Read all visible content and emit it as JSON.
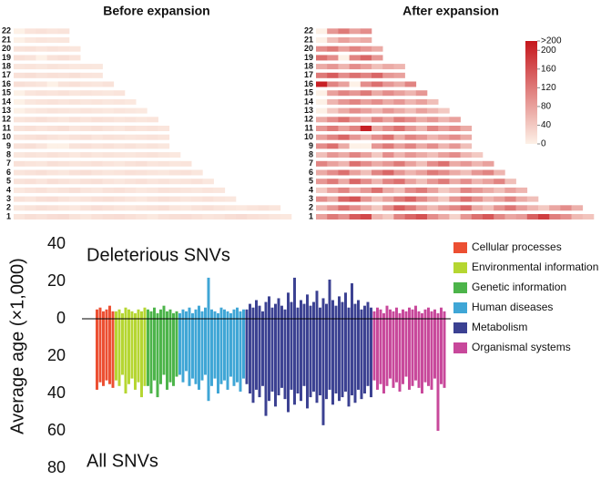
{
  "chart_data": [
    {
      "type": "heatmap",
      "title": "Before expansion",
      "rows": [
        "1",
        "2",
        "3",
        "4",
        "5",
        "6",
        "7",
        "8",
        "9",
        "10",
        "11",
        "12",
        "13",
        "14",
        "15",
        "16",
        "17",
        "18",
        "19",
        "20",
        "21",
        "22"
      ],
      "values": [
        [
          12,
          18,
          15,
          20,
          22,
          14,
          10,
          16,
          19,
          21,
          17,
          13,
          8,
          15,
          18,
          20,
          16,
          12,
          14,
          19,
          22,
          17,
          15,
          11,
          9
        ],
        [
          10,
          14,
          18,
          16,
          12,
          9,
          15,
          20,
          17,
          13,
          11,
          14,
          16,
          19,
          12,
          10,
          15,
          18,
          14,
          11,
          9,
          13,
          16,
          12
        ],
        [
          15,
          12,
          18,
          20,
          14,
          10,
          13,
          17,
          19,
          16,
          12,
          9,
          14,
          18,
          15,
          11,
          13,
          16,
          12,
          10
        ],
        [
          9,
          13,
          16,
          11,
          14,
          18,
          12,
          10,
          15,
          17,
          13,
          9,
          11,
          16,
          14,
          12,
          10,
          13,
          11
        ],
        [
          14,
          17,
          12,
          19,
          15,
          11,
          16,
          18,
          13,
          10,
          14,
          17,
          12,
          15,
          11,
          13,
          16,
          10
        ],
        [
          12,
          15,
          18,
          13,
          10,
          16,
          19,
          14,
          11,
          13,
          17,
          15,
          12,
          10,
          14,
          16,
          11
        ],
        [
          16,
          13,
          11,
          18,
          15,
          12,
          14,
          17,
          13,
          10,
          15,
          18,
          12,
          14,
          11,
          13
        ],
        [
          10,
          14,
          12,
          16,
          13,
          9,
          15,
          11,
          14,
          12,
          10,
          13,
          15,
          11,
          9
        ],
        [
          15,
          18,
          12,
          0,
          0,
          14,
          17,
          13,
          16,
          12,
          15,
          11,
          14,
          10
        ],
        [
          13,
          16,
          19,
          14,
          11,
          15,
          18,
          12,
          16,
          14,
          11,
          13,
          15,
          12
        ],
        [
          14,
          17,
          13,
          16,
          19,
          12,
          15,
          18,
          14,
          11,
          16,
          13,
          15,
          12
        ],
        [
          12,
          15,
          18,
          14,
          11,
          16,
          13,
          17,
          15,
          12,
          14,
          11,
          13
        ],
        [
          0,
          8,
          11,
          14,
          12,
          10,
          13,
          11,
          9,
          12,
          10,
          8
        ],
        [
          0,
          10,
          13,
          15,
          12,
          14,
          11,
          13,
          10,
          12,
          9
        ],
        [
          0,
          12,
          15,
          13,
          16,
          11,
          14,
          12,
          10,
          13
        ],
        [
          18,
          15,
          12,
          0,
          14,
          17,
          13,
          11,
          15
        ],
        [
          16,
          19,
          14,
          17,
          15,
          18,
          13,
          12
        ],
        [
          11,
          13,
          10,
          14,
          12,
          9,
          11,
          10
        ],
        [
          17,
          14,
          0,
          15,
          18,
          13
        ],
        [
          14,
          16,
          12,
          15,
          13,
          11
        ],
        [
          0,
          9,
          12,
          10,
          11
        ],
        [
          0,
          13,
          16,
          12,
          14
        ]
      ]
    },
    {
      "type": "heatmap",
      "title": "After expansion",
      "rows": [
        "1",
        "2",
        "3",
        "4",
        "5",
        "6",
        "7",
        "8",
        "9",
        "10",
        "11",
        "12",
        "13",
        "14",
        "15",
        "16",
        "17",
        "18",
        "19",
        "20",
        "21",
        "22"
      ],
      "values": [
        [
          80,
          120,
          95,
          150,
          170,
          60,
          40,
          110,
          140,
          160,
          100,
          70,
          30,
          90,
          130,
          155,
          105,
          75,
          85,
          145,
          180,
          115,
          95,
          55,
          45
        ],
        [
          60,
          90,
          130,
          100,
          70,
          40,
          95,
          150,
          120,
          80,
          55,
          85,
          105,
          140,
          70,
          50,
          95,
          125,
          85,
          60,
          40,
          75,
          100,
          65
        ],
        [
          100,
          70,
          140,
          160,
          90,
          50,
          80,
          120,
          145,
          105,
          70,
          40,
          90,
          130,
          95,
          60,
          80,
          110,
          70,
          50
        ],
        [
          40,
          80,
          110,
          60,
          90,
          130,
          70,
          50,
          100,
          120,
          80,
          40,
          60,
          110,
          90,
          70,
          50,
          80,
          60
        ],
        [
          90,
          120,
          70,
          140,
          100,
          60,
          110,
          130,
          80,
          50,
          90,
          120,
          70,
          100,
          60,
          80,
          110,
          50
        ],
        [
          70,
          100,
          130,
          80,
          50,
          110,
          140,
          90,
          60,
          80,
          120,
          100,
          70,
          50,
          90,
          110,
          60
        ],
        [
          110,
          80,
          60,
          130,
          100,
          70,
          90,
          120,
          80,
          50,
          100,
          130,
          70,
          90,
          60,
          80
        ],
        [
          50,
          90,
          70,
          110,
          80,
          40,
          100,
          60,
          90,
          70,
          50,
          80,
          100,
          60,
          40
        ],
        [
          100,
          130,
          70,
          0,
          0,
          90,
          120,
          80,
          110,
          70,
          100,
          60,
          90,
          50
        ],
        [
          80,
          110,
          140,
          90,
          60,
          100,
          130,
          70,
          110,
          90,
          60,
          80,
          100,
          70
        ],
        [
          90,
          120,
          80,
          110,
          210,
          70,
          100,
          130,
          90,
          60,
          110,
          80,
          100,
          70
        ],
        [
          70,
          100,
          130,
          90,
          60,
          110,
          80,
          120,
          100,
          70,
          90,
          60,
          80
        ],
        [
          0,
          40,
          70,
          100,
          80,
          60,
          90,
          70,
          50,
          80,
          60,
          40
        ],
        [
          0,
          60,
          90,
          110,
          80,
          100,
          70,
          90,
          60,
          80,
          50
        ],
        [
          0,
          80,
          110,
          90,
          120,
          70,
          100,
          80,
          60,
          90
        ],
        [
          210,
          110,
          80,
          0,
          100,
          130,
          90,
          70,
          110
        ],
        [
          120,
          150,
          100,
          130,
          110,
          140,
          90,
          80
        ],
        [
          70,
          90,
          60,
          100,
          80,
          50,
          70,
          60
        ],
        [
          130,
          100,
          0,
          110,
          140,
          90
        ],
        [
          100,
          120,
          80,
          110,
          90,
          70
        ],
        [
          0,
          50,
          80,
          60,
          70
        ],
        [
          0,
          90,
          120,
          80,
          100
        ]
      ]
    },
    {
      "type": "colorbar",
      "colors": [
        "#fdf1e7",
        "#c5161c"
      ],
      "zlim": [
        0,
        220
      ],
      "zticks": [
        0,
        40,
        80,
        120,
        160,
        200,
        {
          "value": 220,
          "label": ">200"
        }
      ]
    },
    {
      "type": "bar",
      "ylabel": "Average age (×1,000)",
      "annotations": [
        "Deleterious SNVs",
        "All SNVs"
      ],
      "ylim": [
        -80,
        40
      ],
      "yticks": [
        {
          "value": -80,
          "label": "80"
        },
        {
          "value": -60,
          "label": "60"
        },
        {
          "value": -40,
          "label": "40"
        },
        {
          "value": -20,
          "label": "20"
        },
        0,
        20,
        40
      ],
      "series": [
        {
          "name": "Cellular processes",
          "color": "#ec4f32",
          "values": [
            5,
            6,
            4,
            5,
            7,
            4
          ],
          "lower_values": [
            -38,
            -34,
            -36,
            -33,
            -35,
            -37
          ]
        },
        {
          "name": "Environmental information",
          "color": "#b5d631",
          "values": [
            4,
            5,
            3,
            6,
            5,
            4,
            3,
            5,
            4,
            6
          ],
          "lower_values": [
            -33,
            -36,
            -30,
            -40,
            -35,
            -32,
            -38,
            -34,
            -42,
            -36
          ]
        },
        {
          "name": "Genetic information",
          "color": "#4cb44a",
          "values": [
            5,
            4,
            6,
            3,
            5,
            7,
            4,
            5,
            3,
            4
          ],
          "lower_values": [
            -36,
            -40,
            -33,
            -42,
            -35,
            -30,
            -38,
            -34,
            -36,
            -31
          ]
        },
        {
          "name": "Human diseases",
          "color": "#3fa6d6",
          "values": [
            3,
            5,
            4,
            6,
            3,
            5,
            7,
            4,
            6,
            22,
            5,
            4,
            3,
            6,
            5,
            4,
            3,
            5,
            6,
            4,
            5
          ],
          "lower_values": [
            -30,
            -34,
            -28,
            -36,
            -32,
            -35,
            -38,
            -33,
            -30,
            -44,
            -36,
            -32,
            -40,
            -35,
            -33,
            -38,
            -31,
            -36,
            -34,
            -39,
            -32
          ]
        },
        {
          "name": "Metabolism",
          "color": "#3b4192",
          "values": [
            5,
            8,
            6,
            10,
            7,
            4,
            9,
            12,
            6,
            8,
            11,
            7,
            5,
            14,
            9,
            22,
            6,
            10,
            8,
            13,
            7,
            9,
            15,
            6,
            11,
            8,
            21,
            10,
            7,
            12,
            9,
            14,
            6,
            19,
            8,
            10,
            5,
            7,
            9,
            6
          ],
          "lower_values": [
            -35,
            -40,
            -45,
            -38,
            -42,
            -36,
            -52,
            -44,
            -39,
            -47,
            -41,
            -37,
            -43,
            -50,
            -38,
            -46,
            -40,
            -44,
            -36,
            -48,
            -42,
            -39,
            -45,
            -41,
            -57,
            -43,
            -38,
            -46,
            -40,
            -44,
            -42,
            -39,
            -47,
            -41,
            -45,
            -38,
            -43,
            -40,
            -36,
            -42
          ]
        },
        {
          "name": "Organismal systems",
          "color": "#c8489b",
          "values": [
            4,
            6,
            5,
            3,
            7,
            5,
            4,
            6,
            3,
            5,
            4,
            6,
            5,
            7,
            4,
            3,
            5,
            6,
            4,
            5,
            3,
            6,
            4
          ],
          "lower_values": [
            -33,
            -38,
            -35,
            -40,
            -36,
            -32,
            -37,
            -34,
            -39,
            -35,
            -31,
            -38,
            -36,
            -33,
            -37,
            -40,
            -34,
            -36,
            -38,
            -32,
            -60,
            -35,
            -37
          ]
        }
      ]
    }
  ]
}
